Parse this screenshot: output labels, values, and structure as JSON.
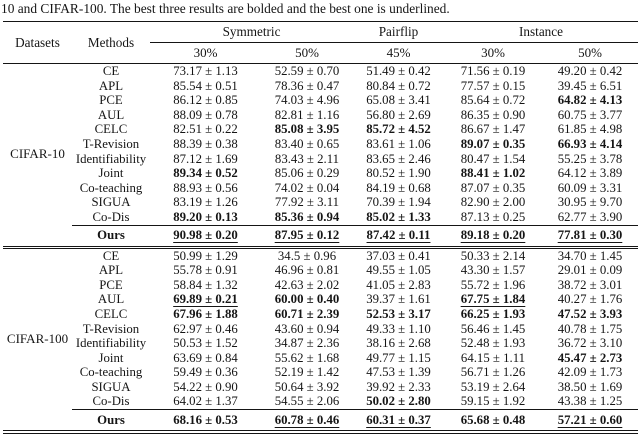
{
  "caption": "10 and CIFAR-100. The best three results are bolded and the best one is underlined.",
  "header": {
    "datasets": "Datasets",
    "methods": "Methods",
    "groups": [
      "Symmetric",
      "Pairflip",
      "Instance"
    ],
    "rates": [
      "30%",
      "50%",
      "45%",
      "30%",
      "50%"
    ]
  },
  "sections": [
    {
      "dataset": "CIFAR-10",
      "rows": [
        {
          "method": "CE",
          "cells": [
            {
              "v": "73.17 ± 1.13",
              "s": ""
            },
            {
              "v": "52.59 ± 0.70",
              "s": ""
            },
            {
              "v": "51.49 ± 0.42",
              "s": ""
            },
            {
              "v": "71.56 ± 0.19",
              "s": ""
            },
            {
              "v": "49.20 ± 0.42",
              "s": ""
            }
          ]
        },
        {
          "method": "APL",
          "cells": [
            {
              "v": "85.54 ± 0.51",
              "s": ""
            },
            {
              "v": "78.36 ± 0.47",
              "s": ""
            },
            {
              "v": "80.84 ± 0.72",
              "s": ""
            },
            {
              "v": "77.57 ± 0.15",
              "s": ""
            },
            {
              "v": "39.45 ± 6.51",
              "s": ""
            }
          ]
        },
        {
          "method": "PCE",
          "cells": [
            {
              "v": "86.12 ± 0.85",
              "s": ""
            },
            {
              "v": "74.03 ± 4.96",
              "s": ""
            },
            {
              "v": "65.08 ± 3.41",
              "s": ""
            },
            {
              "v": "85.64 ± 0.72",
              "s": ""
            },
            {
              "v": "64.82 ± 4.13",
              "s": "b"
            }
          ]
        },
        {
          "method": "AUL",
          "cells": [
            {
              "v": "88.09 ± 0.78",
              "s": ""
            },
            {
              "v": "82.81 ± 1.16",
              "s": ""
            },
            {
              "v": "56.80 ± 2.69",
              "s": ""
            },
            {
              "v": "86.35 ± 0.90",
              "s": ""
            },
            {
              "v": "60.75 ± 3.77",
              "s": ""
            }
          ]
        },
        {
          "method": "CELC",
          "cells": [
            {
              "v": "82.51 ± 0.22",
              "s": ""
            },
            {
              "v": "85.08 ± 3.95",
              "s": "b"
            },
            {
              "v": "85.72 ± 4.52",
              "s": "b"
            },
            {
              "v": "86.67 ± 1.47",
              "s": ""
            },
            {
              "v": "61.85 ± 4.98",
              "s": ""
            }
          ]
        },
        {
          "method": "T-Revision",
          "cells": [
            {
              "v": "88.39 ± 0.38",
              "s": ""
            },
            {
              "v": "83.40 ± 0.65",
              "s": ""
            },
            {
              "v": "83.61 ± 1.06",
              "s": ""
            },
            {
              "v": "89.07 ± 0.35",
              "s": "b"
            },
            {
              "v": "66.93 ± 4.14",
              "s": "b"
            }
          ]
        },
        {
          "method": "Identifiability",
          "cells": [
            {
              "v": "87.12 ± 1.69",
              "s": ""
            },
            {
              "v": "83.43 ± 2.11",
              "s": ""
            },
            {
              "v": "83.65 ± 2.46",
              "s": ""
            },
            {
              "v": "80.47 ± 1.54",
              "s": ""
            },
            {
              "v": "55.25 ± 3.78",
              "s": ""
            }
          ]
        },
        {
          "method": "Joint",
          "cells": [
            {
              "v": "89.34 ± 0.52",
              "s": "b"
            },
            {
              "v": "85.06 ± 0.29",
              "s": ""
            },
            {
              "v": "80.52 ± 1.90",
              "s": ""
            },
            {
              "v": "88.41 ± 1.02",
              "s": "b"
            },
            {
              "v": "64.12 ± 3.89",
              "s": ""
            }
          ]
        },
        {
          "method": "Co-teaching",
          "cells": [
            {
              "v": "88.93 ± 0.56",
              "s": ""
            },
            {
              "v": "74.02 ± 0.04",
              "s": ""
            },
            {
              "v": "84.19 ± 0.68",
              "s": ""
            },
            {
              "v": "87.07 ± 0.35",
              "s": ""
            },
            {
              "v": "60.09 ± 3.31",
              "s": ""
            }
          ]
        },
        {
          "method": "SIGUA",
          "cells": [
            {
              "v": "83.19 ± 1.26",
              "s": ""
            },
            {
              "v": "77.92 ± 3.11",
              "s": ""
            },
            {
              "v": "70.39 ± 1.94",
              "s": ""
            },
            {
              "v": "82.90 ± 2.00",
              "s": ""
            },
            {
              "v": "30.95 ± 9.70",
              "s": ""
            }
          ]
        },
        {
          "method": "Co-Dis",
          "cells": [
            {
              "v": "89.20 ± 0.13",
              "s": "b"
            },
            {
              "v": "85.36 ± 0.94",
              "s": "b"
            },
            {
              "v": "85.02 ± 1.33",
              "s": "b"
            },
            {
              "v": "87.13 ± 0.25",
              "s": ""
            },
            {
              "v": "62.77 ± 3.90",
              "s": ""
            }
          ]
        },
        {
          "method": "Ours",
          "ours": true,
          "cells": [
            {
              "v": "90.98 ± 0.20",
              "s": "bu"
            },
            {
              "v": "87.95 ± 0.12",
              "s": "bu"
            },
            {
              "v": "87.42 ± 0.11",
              "s": "bu"
            },
            {
              "v": "89.18 ± 0.20",
              "s": "bu"
            },
            {
              "v": "77.81 ± 0.30",
              "s": "bu"
            }
          ]
        }
      ]
    },
    {
      "dataset": "CIFAR-100",
      "rows": [
        {
          "method": "CE",
          "cells": [
            {
              "v": "50.99 ± 1.29",
              "s": ""
            },
            {
              "v": "34.5 ± 0.96",
              "s": ""
            },
            {
              "v": "37.03 ± 0.41",
              "s": ""
            },
            {
              "v": "50.33 ± 2.14",
              "s": ""
            },
            {
              "v": "34.70 ± 1.45",
              "s": ""
            }
          ]
        },
        {
          "method": "APL",
          "cells": [
            {
              "v": "55.78 ± 0.91",
              "s": ""
            },
            {
              "v": "46.96 ± 0.81",
              "s": ""
            },
            {
              "v": "49.55 ± 1.05",
              "s": ""
            },
            {
              "v": "43.30 ± 1.57",
              "s": ""
            },
            {
              "v": "29.01 ± 0.09",
              "s": ""
            }
          ]
        },
        {
          "method": "PCE",
          "cells": [
            {
              "v": "58.84 ± 1.32",
              "s": ""
            },
            {
              "v": "42.63 ± 2.02",
              "s": ""
            },
            {
              "v": "41.05 ± 2.83",
              "s": ""
            },
            {
              "v": "55.72 ± 1.96",
              "s": ""
            },
            {
              "v": "38.72 ± 3.01",
              "s": ""
            }
          ]
        },
        {
          "method": "AUL",
          "cells": [
            {
              "v": "69.89 ± 0.21",
              "s": "bu"
            },
            {
              "v": "60.00 ± 0.40",
              "s": "b"
            },
            {
              "v": "39.37 ± 1.61",
              "s": ""
            },
            {
              "v": "67.75 ± 1.84",
              "s": "bu"
            },
            {
              "v": "40.27 ± 1.76",
              "s": ""
            }
          ]
        },
        {
          "method": "CELC",
          "cells": [
            {
              "v": "67.96 ± 1.88",
              "s": "b"
            },
            {
              "v": "60.71 ± 2.39",
              "s": "b"
            },
            {
              "v": "52.53 ± 3.17",
              "s": "b"
            },
            {
              "v": "66.25 ± 1.93",
              "s": "b"
            },
            {
              "v": "47.52 ± 3.93",
              "s": "b"
            }
          ]
        },
        {
          "method": "T-Revision",
          "cells": [
            {
              "v": "62.97 ± 0.46",
              "s": ""
            },
            {
              "v": "43.60 ± 0.94",
              "s": ""
            },
            {
              "v": "49.33 ± 1.10",
              "s": ""
            },
            {
              "v": "56.46 ± 1.45",
              "s": ""
            },
            {
              "v": "40.78 ± 1.75",
              "s": ""
            }
          ]
        },
        {
          "method": "Identifiability",
          "cells": [
            {
              "v": "50.53 ± 1.52",
              "s": ""
            },
            {
              "v": "34.87 ± 2.36",
              "s": ""
            },
            {
              "v": "38.16 ± 2.68",
              "s": ""
            },
            {
              "v": "52.48 ± 1.93",
              "s": ""
            },
            {
              "v": "36.72 ± 3.10",
              "s": ""
            }
          ]
        },
        {
          "method": "Joint",
          "cells": [
            {
              "v": "63.69 ± 0.84",
              "s": ""
            },
            {
              "v": "55.62 ± 1.68",
              "s": ""
            },
            {
              "v": "49.77 ± 1.15",
              "s": ""
            },
            {
              "v": "64.15 ± 1.11",
              "s": ""
            },
            {
              "v": "45.47 ± 2.73",
              "s": "b"
            }
          ]
        },
        {
          "method": "Co-teaching",
          "cells": [
            {
              "v": "59.49 ± 0.36",
              "s": ""
            },
            {
              "v": "52.19 ± 1.42",
              "s": ""
            },
            {
              "v": "47.53 ± 1.39",
              "s": ""
            },
            {
              "v": "56.71 ± 1.26",
              "s": ""
            },
            {
              "v": "42.09 ± 1.73",
              "s": ""
            }
          ]
        },
        {
          "method": "SIGUA",
          "cells": [
            {
              "v": "54.22 ± 0.90",
              "s": ""
            },
            {
              "v": "50.64 ± 3.92",
              "s": ""
            },
            {
              "v": "39.92 ± 2.33",
              "s": ""
            },
            {
              "v": "53.19 ± 2.64",
              "s": ""
            },
            {
              "v": "38.50 ± 1.69",
              "s": ""
            }
          ]
        },
        {
          "method": "Co-Dis",
          "cells": [
            {
              "v": "64.02 ± 1.37",
              "s": ""
            },
            {
              "v": "54.55 ± 2.06",
              "s": ""
            },
            {
              "v": "50.02 ± 2.80",
              "s": "b"
            },
            {
              "v": "59.15 ± 1.92",
              "s": ""
            },
            {
              "v": "43.38 ± 1.25",
              "s": ""
            }
          ]
        },
        {
          "method": "Ours",
          "ours": true,
          "cells": [
            {
              "v": "68.16 ± 0.53",
              "s": "b"
            },
            {
              "v": "60.78 ± 0.46",
              "s": "bu"
            },
            {
              "v": "60.31 ± 0.37",
              "s": "bu"
            },
            {
              "v": "65.68 ± 0.48",
              "s": "b"
            },
            {
              "v": "57.21 ± 0.60",
              "s": "bu"
            }
          ]
        }
      ]
    }
  ]
}
